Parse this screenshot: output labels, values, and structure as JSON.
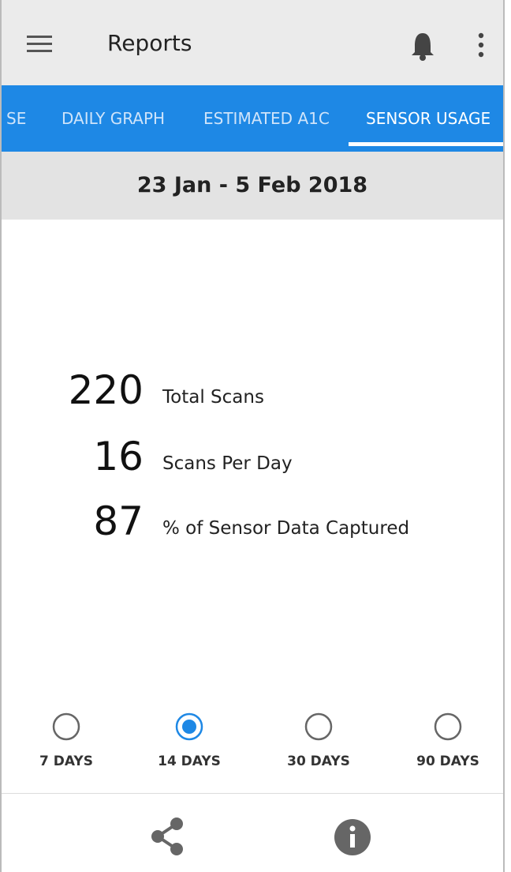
{
  "header": {
    "title": "Reports"
  },
  "tabs": [
    "SE",
    "DAILY GRAPH",
    "ESTIMATED A1C",
    "SENSOR USAGE"
  ],
  "date_range": "23 Jan - 5 Feb 2018",
  "stats": [
    {
      "value": "220",
      "label": "Total Scans"
    },
    {
      "value": "16",
      "label": "Scans Per Day"
    },
    {
      "value": "87",
      "label": "% of Sensor Data Captured"
    }
  ],
  "periods": [
    "7 DAYS",
    "14 DAYS",
    "30 DAYS",
    "90 DAYS"
  ]
}
